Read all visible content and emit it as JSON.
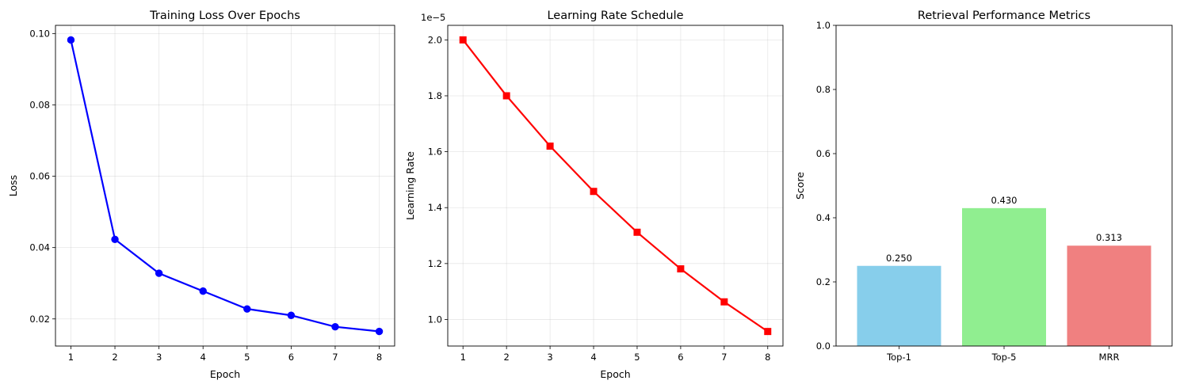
{
  "chart_data": [
    {
      "type": "line",
      "title": "Training Loss Over Epochs",
      "xlabel": "Epoch",
      "ylabel": "Loss",
      "x": [
        1,
        2,
        3,
        4,
        5,
        6,
        7,
        8
      ],
      "series": [
        {
          "values": [
            0.0982,
            0.0423,
            0.0328,
            0.0278,
            0.0228,
            0.021,
            0.0178,
            0.0165
          ],
          "color": "#0000ff",
          "marker": "circle"
        }
      ],
      "xticks": [
        1,
        2,
        3,
        4,
        5,
        6,
        7,
        8
      ],
      "yticks": [
        0.02,
        0.04,
        0.06,
        0.08,
        0.1
      ],
      "ytick_labels": [
        "0.02",
        "0.04",
        "0.06",
        "0.08",
        "0.10"
      ],
      "xlim": [
        0.65,
        8.35
      ],
      "ylim": [
        0.0124,
        0.1023
      ],
      "grid": true
    },
    {
      "type": "line",
      "title": "Learning Rate Schedule",
      "xlabel": "Epoch",
      "ylabel": "Learning Rate",
      "y_multiplier_label": "1e−5",
      "x": [
        1,
        2,
        3,
        4,
        5,
        6,
        7,
        8
      ],
      "series": [
        {
          "values": [
            2.0,
            1.8,
            1.62,
            1.458,
            1.312,
            1.181,
            1.063,
            0.957
          ],
          "color": "#ff0000",
          "marker": "square"
        }
      ],
      "xticks": [
        1,
        2,
        3,
        4,
        5,
        6,
        7,
        8
      ],
      "yticks": [
        1.0,
        1.2,
        1.4,
        1.6,
        1.8,
        2.0
      ],
      "ytick_labels": [
        "1.0",
        "1.2",
        "1.4",
        "1.6",
        "1.8",
        "2.0"
      ],
      "xlim": [
        0.65,
        8.35
      ],
      "ylim": [
        0.905,
        2.052
      ],
      "grid": true
    },
    {
      "type": "bar",
      "title": "Retrieval Performance Metrics",
      "xlabel": "",
      "ylabel": "Score",
      "categories": [
        "Top-1",
        "Top-5",
        "MRR"
      ],
      "values": [
        0.25,
        0.43,
        0.313
      ],
      "value_labels": [
        "0.250",
        "0.430",
        "0.313"
      ],
      "colors": [
        "#87ceeb",
        "#90ee90",
        "#f08080"
      ],
      "yticks": [
        0.0,
        0.2,
        0.4,
        0.6,
        0.8,
        1.0
      ],
      "ytick_labels": [
        "0.0",
        "0.2",
        "0.4",
        "0.6",
        "0.8",
        "1.0"
      ],
      "ylim": [
        0,
        1
      ],
      "grid": false
    }
  ]
}
